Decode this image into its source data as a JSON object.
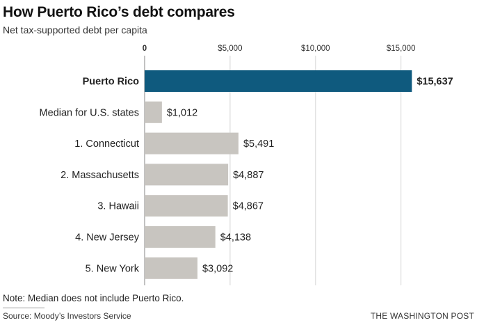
{
  "header": {
    "title": "How Puerto Rico’s debt compares",
    "subtitle": "Net tax-supported debt per capita"
  },
  "chart_data": {
    "type": "bar",
    "orientation": "horizontal",
    "categories": [
      "Puerto Rico",
      "Median for U.S. states",
      "1. Connecticut",
      "2. Massachusetts",
      "3. Hawaii",
      "4. New Jersey",
      "5. New York"
    ],
    "values": [
      15637,
      1012,
      5491,
      4887,
      4867,
      4138,
      3092
    ],
    "value_labels": [
      "$15,637",
      "$1,012",
      "$5,491",
      "$4,887",
      "$4,867",
      "$4,138",
      "$3,092"
    ],
    "highlight_index": 0,
    "xlim": [
      0,
      19000
    ],
    "x_ticks": [
      0,
      5000,
      10000,
      15000
    ],
    "x_tick_labels": [
      "0",
      "$5,000",
      "$10,000",
      "$15,000"
    ],
    "grid": true,
    "colors": {
      "highlight": "#0f5a7e",
      "bar": "#c8c5c0",
      "grid": "#d6d6d6",
      "axis": "#999999"
    }
  },
  "footer": {
    "note": "Note: Median does not include Puerto Rico.",
    "source": "Source: Moody’s Investors Service",
    "credit": "THE WASHINGTON POST"
  }
}
